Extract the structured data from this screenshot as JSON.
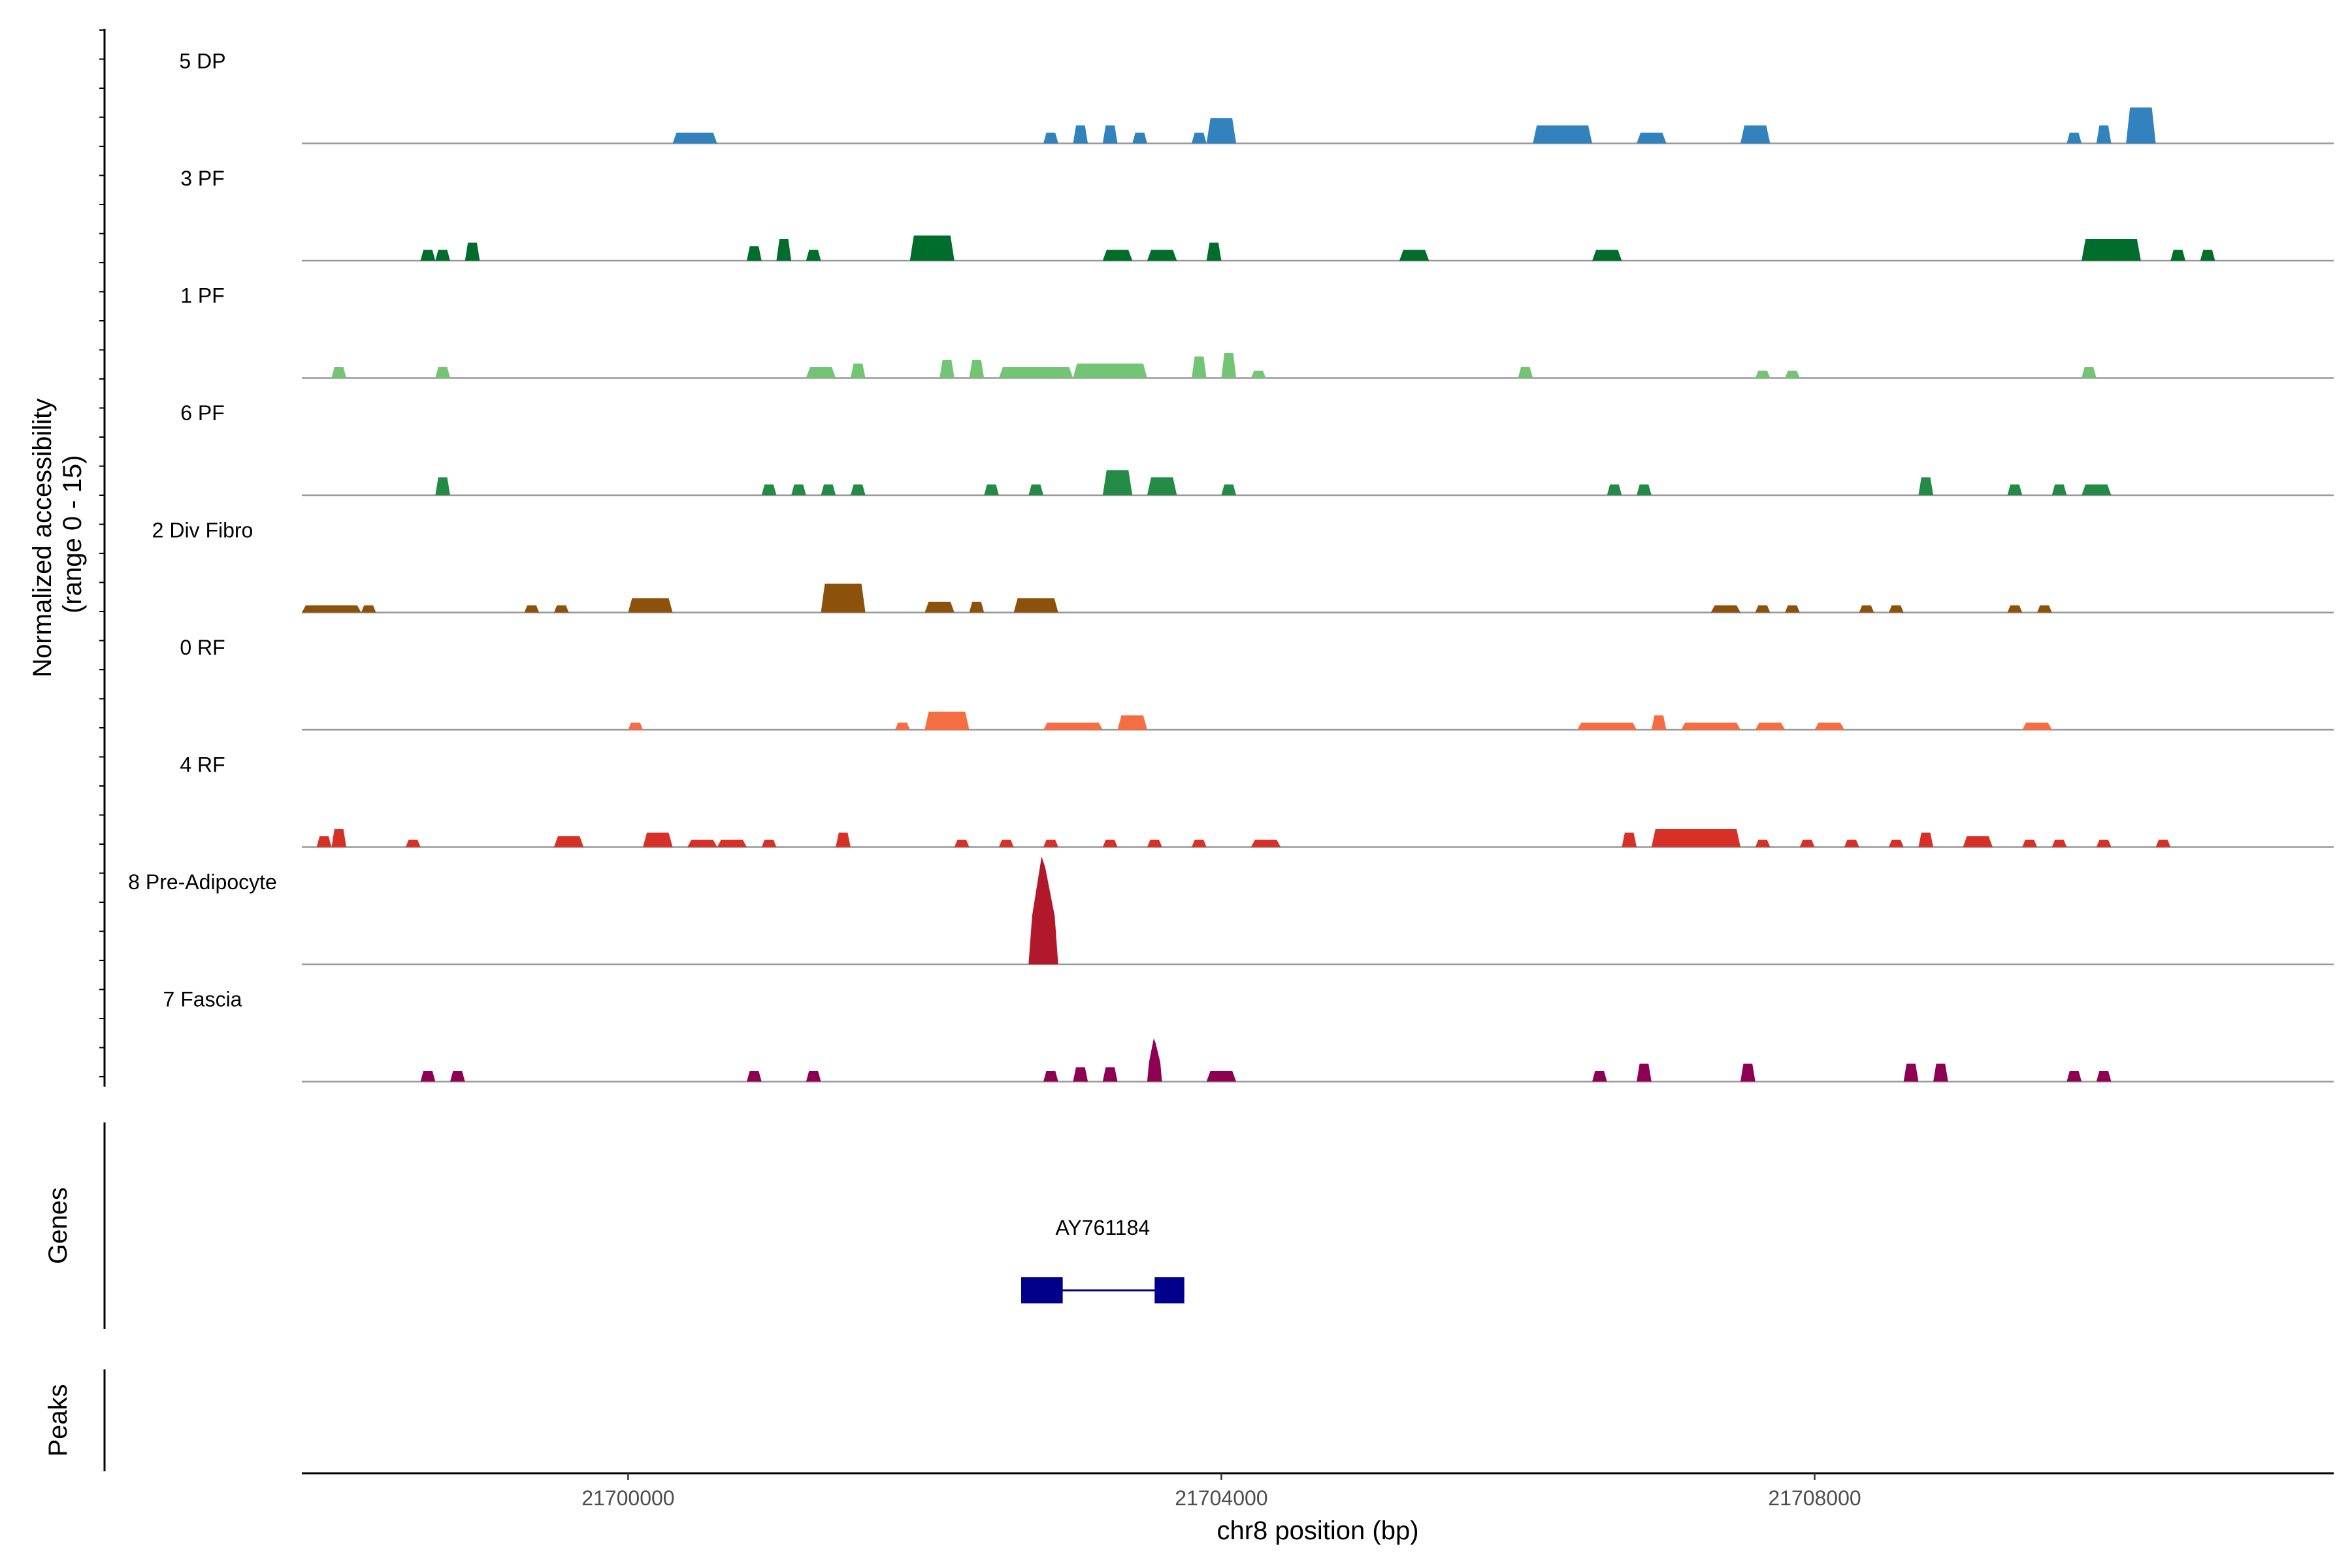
{
  "chart_data": {
    "type": "area",
    "ylabel": "Normalized accessibility\n(range 0 - 15)",
    "xlabel": "chr8 position (bp)",
    "ylim": [
      0,
      15
    ],
    "xlim": [
      21697800,
      21711500
    ],
    "x_ticks": [
      21700000,
      21704000,
      21708000
    ],
    "x_tick_labels": [
      "21700000",
      "21704000",
      "21708000"
    ],
    "series": [
      {
        "name": "5 DP",
        "color": "#3182bd",
        "peaks": [
          [
            21700300,
            21700600,
            1.5
          ],
          [
            21702800,
            21702900,
            1.5
          ],
          [
            21703000,
            21703100,
            2.5
          ],
          [
            21703200,
            21703300,
            2.5
          ],
          [
            21703400,
            21703500,
            1.5
          ],
          [
            21703800,
            21703900,
            1.5
          ],
          [
            21703900,
            21704100,
            3.5
          ],
          [
            21706100,
            21706500,
            2.5
          ],
          [
            21706800,
            21707000,
            1.5
          ],
          [
            21707500,
            21707700,
            2.5
          ],
          [
            21709700,
            21709800,
            1.5
          ],
          [
            21709900,
            21710000,
            2.5
          ],
          [
            21710100,
            21710300,
            5.0
          ]
        ]
      },
      {
        "name": "3 PF",
        "color": "#006d2c",
        "peaks": [
          [
            21698600,
            21698700,
            1.5
          ],
          [
            21698700,
            21698800,
            1.5
          ],
          [
            21698900,
            21699000,
            2.5
          ],
          [
            21700800,
            21700900,
            2.0
          ],
          [
            21701000,
            21701100,
            3.0
          ],
          [
            21701200,
            21701300,
            1.5
          ],
          [
            21701900,
            21702200,
            3.5
          ],
          [
            21703200,
            21703400,
            1.5
          ],
          [
            21703500,
            21703700,
            1.5
          ],
          [
            21703900,
            21704000,
            2.5
          ],
          [
            21705200,
            21705400,
            1.5
          ],
          [
            21706500,
            21706700,
            1.5
          ],
          [
            21709800,
            21710200,
            3.0
          ],
          [
            21710400,
            21710500,
            1.5
          ],
          [
            21710600,
            21710700,
            1.5
          ]
        ]
      },
      {
        "name": "1 PF",
        "color": "#74c476",
        "peaks": [
          [
            21698000,
            21698100,
            1.5
          ],
          [
            21698700,
            21698800,
            1.5
          ],
          [
            21701200,
            21701400,
            1.5
          ],
          [
            21701500,
            21701600,
            2.0
          ],
          [
            21702100,
            21702200,
            2.5
          ],
          [
            21702300,
            21702400,
            2.5
          ],
          [
            21702500,
            21703000,
            1.5
          ],
          [
            21703000,
            21703500,
            2.0
          ],
          [
            21703800,
            21703900,
            3.0
          ],
          [
            21704000,
            21704100,
            3.5
          ],
          [
            21704200,
            21704300,
            1.0
          ],
          [
            21706000,
            21706100,
            1.5
          ],
          [
            21707600,
            21707700,
            1.0
          ],
          [
            21707800,
            21707900,
            1.0
          ],
          [
            21709800,
            21709900,
            1.5
          ]
        ]
      },
      {
        "name": "6 PF",
        "color": "#238b45",
        "peaks": [
          [
            21698700,
            21698800,
            2.5
          ],
          [
            21700900,
            21701000,
            1.5
          ],
          [
            21701100,
            21701200,
            1.5
          ],
          [
            21701300,
            21701400,
            1.5
          ],
          [
            21701500,
            21701600,
            1.5
          ],
          [
            21702400,
            21702500,
            1.5
          ],
          [
            21702700,
            21702800,
            1.5
          ],
          [
            21703200,
            21703400,
            3.5
          ],
          [
            21703500,
            21703700,
            2.5
          ],
          [
            21704000,
            21704100,
            1.5
          ],
          [
            21706600,
            21706700,
            1.5
          ],
          [
            21706800,
            21706900,
            1.5
          ],
          [
            21708700,
            21708800,
            2.5
          ],
          [
            21709300,
            21709400,
            1.5
          ],
          [
            21709600,
            21709700,
            1.5
          ],
          [
            21709800,
            21710000,
            1.5
          ]
        ]
      },
      {
        "name": "2 Div Fibro",
        "color": "#8c510a",
        "peaks": [
          [
            21697800,
            21698200,
            1.0
          ],
          [
            21698200,
            21698300,
            1.0
          ],
          [
            21699300,
            21699400,
            1.0
          ],
          [
            21699500,
            21699600,
            1.0
          ],
          [
            21700000,
            21700300,
            2.0
          ],
          [
            21701300,
            21701600,
            4.0
          ],
          [
            21702000,
            21702200,
            1.5
          ],
          [
            21702300,
            21702400,
            1.5
          ],
          [
            21702600,
            21702900,
            2.0
          ],
          [
            21707300,
            21707500,
            1.0
          ],
          [
            21707600,
            21707700,
            1.0
          ],
          [
            21707800,
            21707900,
            1.0
          ],
          [
            21708300,
            21708400,
            1.0
          ],
          [
            21708500,
            21708600,
            1.0
          ],
          [
            21709300,
            21709400,
            1.0
          ],
          [
            21709500,
            21709600,
            1.0
          ]
        ]
      },
      {
        "name": "0 RF",
        "color": "#f46d43",
        "peaks": [
          [
            21700000,
            21700100,
            1.0
          ],
          [
            21701800,
            21701900,
            1.0
          ],
          [
            21702000,
            21702300,
            2.5
          ],
          [
            21702800,
            21703200,
            1.0
          ],
          [
            21703300,
            21703500,
            2.0
          ],
          [
            21706400,
            21706800,
            1.0
          ],
          [
            21706900,
            21707000,
            2.0
          ],
          [
            21707100,
            21707500,
            1.0
          ],
          [
            21707600,
            21707800,
            1.0
          ],
          [
            21708000,
            21708200,
            1.0
          ],
          [
            21709400,
            21709600,
            1.0
          ]
        ]
      },
      {
        "name": "4 RF",
        "color": "#d73027",
        "peaks": [
          [
            21697900,
            21698000,
            1.5
          ],
          [
            21698000,
            21698100,
            2.5
          ],
          [
            21698500,
            21698600,
            1.0
          ],
          [
            21699500,
            21699700,
            1.5
          ],
          [
            21700100,
            21700300,
            2.0
          ],
          [
            21700400,
            21700600,
            1.0
          ],
          [
            21700600,
            21700800,
            1.0
          ],
          [
            21700900,
            21701000,
            1.0
          ],
          [
            21701400,
            21701500,
            2.0
          ],
          [
            21702200,
            21702300,
            1.0
          ],
          [
            21702500,
            21702600,
            1.0
          ],
          [
            21702800,
            21702900,
            1.0
          ],
          [
            21703200,
            21703300,
            1.0
          ],
          [
            21703500,
            21703600,
            1.0
          ],
          [
            21703800,
            21703900,
            1.0
          ],
          [
            21704200,
            21704400,
            1.0
          ],
          [
            21706700,
            21706800,
            2.0
          ],
          [
            21706900,
            21707500,
            2.5
          ],
          [
            21707600,
            21707700,
            1.0
          ],
          [
            21707900,
            21708000,
            1.0
          ],
          [
            21708200,
            21708300,
            1.0
          ],
          [
            21708500,
            21708600,
            1.0
          ],
          [
            21708700,
            21708800,
            2.0
          ],
          [
            21709000,
            21709200,
            1.5
          ],
          [
            21709400,
            21709500,
            1.0
          ],
          [
            21709600,
            21709700,
            1.0
          ],
          [
            21709900,
            21710000,
            1.0
          ],
          [
            21710300,
            21710400,
            1.0
          ]
        ]
      },
      {
        "name": "8 Pre-Adipocyte",
        "color": "#b2182b",
        "peaks": [
          [
            21702700,
            21702900,
            15.0
          ]
        ]
      },
      {
        "name": "7 Fascia",
        "color": "#8e0152",
        "peaks": [
          [
            21698600,
            21698700,
            1.5
          ],
          [
            21698800,
            21698900,
            1.5
          ],
          [
            21700800,
            21700900,
            1.5
          ],
          [
            21701200,
            21701300,
            1.5
          ],
          [
            21702800,
            21702900,
            1.5
          ],
          [
            21703000,
            21703100,
            2.0
          ],
          [
            21703200,
            21703300,
            2.0
          ],
          [
            21703500,
            21703600,
            6.0
          ],
          [
            21703900,
            21704100,
            1.5
          ],
          [
            21706500,
            21706600,
            1.5
          ],
          [
            21706800,
            21706900,
            2.5
          ],
          [
            21707500,
            21707600,
            2.5
          ],
          [
            21708600,
            21708700,
            2.5
          ],
          [
            21708800,
            21708900,
            2.5
          ],
          [
            21709700,
            21709800,
            1.5
          ],
          [
            21709900,
            21710000,
            1.5
          ]
        ]
      }
    ],
    "genes_label": "Genes",
    "peaks_label": "Peaks",
    "gene": {
      "name": "AY761184",
      "start": 21702650,
      "end": 21703750,
      "exons": [
        [
          21702650,
          21702930
        ],
        [
          21703550,
          21703750
        ]
      ],
      "color": "#00008b"
    }
  }
}
